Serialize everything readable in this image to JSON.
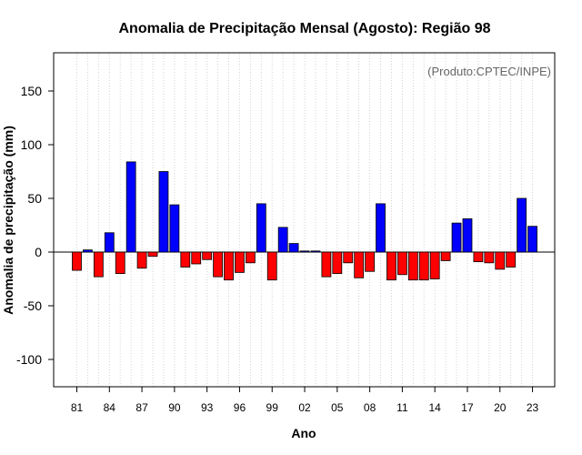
{
  "colors": {
    "positive": "#0000ff",
    "negative": "#ff0000",
    "bar_stroke": "#000000",
    "grid": "#d3d3d3",
    "credit": "#666666"
  },
  "chart_data": {
    "type": "bar",
    "title": "Anomalia de Precipitação Mensal (Agosto): Região 98",
    "xlabel": "Ano",
    "ylabel": "Anomalia de precipitação (mm)",
    "annotation": "(Produto:CPTEC/INPE)",
    "ylim": [
      -128,
      185
    ],
    "yticks": [
      -100,
      -50,
      0,
      50,
      100,
      150
    ],
    "grid": "vertical-dotted",
    "categories": [
      "81",
      "82",
      "83",
      "84",
      "85",
      "86",
      "87",
      "88",
      "89",
      "90",
      "91",
      "92",
      "93",
      "94",
      "95",
      "96",
      "97",
      "98",
      "99",
      "00",
      "01",
      "02",
      "03",
      "04",
      "05",
      "06",
      "07",
      "08",
      "09",
      "10",
      "11",
      "12",
      "13",
      "14",
      "15",
      "16",
      "17",
      "18",
      "19",
      "20",
      "21",
      "22",
      "23"
    ],
    "xtick_labels": [
      "81",
      "84",
      "87",
      "90",
      "93",
      "96",
      "99",
      "02",
      "05",
      "08",
      "11",
      "14",
      "17",
      "20",
      "23"
    ],
    "values": [
      -17,
      2,
      -23,
      18,
      -20,
      84,
      -15,
      -4,
      75,
      44,
      -14,
      -11,
      -7,
      -23,
      -26,
      -19,
      -10,
      45,
      -26,
      23,
      8,
      1,
      1,
      -23,
      -20,
      -10,
      -24,
      -18,
      45,
      -26,
      -21,
      -26,
      -26,
      -25,
      -8,
      27,
      31,
      -9,
      -10,
      -16,
      -14,
      50,
      24
    ]
  }
}
